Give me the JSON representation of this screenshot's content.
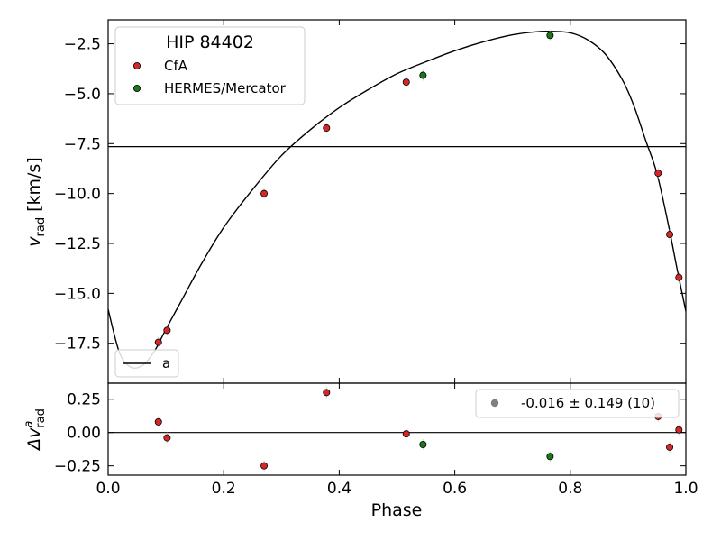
{
  "chart_data": {
    "type": "scatter",
    "title": "",
    "x_label": "Phase",
    "xlim": [
      0.0,
      1.0
    ],
    "x_ticks": [
      "0.0",
      "0.2",
      "0.4",
      "0.6",
      "0.8",
      "1.0"
    ],
    "panels": [
      {
        "name": "rv",
        "ylabel_base": "v",
        "ylabel_sub": "rad",
        "ylabel_unit": "[km/s]",
        "ylim": [
          -19.5,
          -1.3
        ],
        "y_ticks": [
          -2.5,
          -5.0,
          -7.5,
          -10.0,
          -12.5,
          -15.0,
          -17.5
        ],
        "y_tick_labels": [
          "−2.5",
          "−5.0",
          "−7.5",
          "−10.0",
          "−12.5",
          "−15.0",
          "−17.5"
        ],
        "systemic_velocity": -7.65,
        "orbit_model": {
          "name": "a",
          "phase": [
            0.0,
            0.02,
            0.04,
            0.06,
            0.08,
            0.1,
            0.13,
            0.16,
            0.2,
            0.25,
            0.3,
            0.35,
            0.4,
            0.45,
            0.5,
            0.55,
            0.6,
            0.65,
            0.7,
            0.74,
            0.77,
            0.8,
            0.83,
            0.86,
            0.89,
            0.91,
            0.93,
            0.95,
            0.97,
            0.985,
            1.0
          ],
          "vrad": [
            -15.8,
            -18.0,
            -18.7,
            -18.6,
            -17.9,
            -16.8,
            -15.2,
            -13.6,
            -11.7,
            -9.8,
            -8.1,
            -6.8,
            -5.7,
            -4.8,
            -4.0,
            -3.4,
            -2.85,
            -2.4,
            -2.05,
            -1.9,
            -1.88,
            -1.95,
            -2.3,
            -3.0,
            -4.3,
            -5.6,
            -7.3,
            -9.0,
            -11.6,
            -13.8,
            -15.9
          ]
        },
        "series": [
          {
            "name": "CfA",
            "color": "#d62728",
            "points": [
              [
                0.087,
                -17.45
              ],
              [
                0.102,
                -16.85
              ],
              [
                0.27,
                -10.0
              ],
              [
                0.378,
                -6.72
              ],
              [
                0.516,
                -4.42
              ],
              [
                0.952,
                -8.98
              ],
              [
                0.972,
                -12.05
              ],
              [
                0.988,
                -14.2
              ]
            ]
          },
          {
            "name": "HERMES/Mercator",
            "color": "#1a7a1a",
            "points": [
              [
                0.545,
                -4.08
              ],
              [
                0.765,
                -2.08
              ]
            ]
          }
        ]
      },
      {
        "name": "residuals",
        "ylabel_base": "Δv",
        "ylabel_sup": "a",
        "ylabel_sub": "rad",
        "ylim": [
          -0.32,
          0.37
        ],
        "y_ticks": [
          0.25,
          0.0,
          -0.25
        ],
        "y_tick_labels": [
          "0.25",
          "0.00",
          "−0.25"
        ],
        "zero_line": 0.0,
        "series": [
          {
            "name": "CfA",
            "color": "#d62728",
            "points": [
              [
                0.087,
                0.08
              ],
              [
                0.102,
                -0.04
              ],
              [
                0.27,
                -0.25
              ],
              [
                0.378,
                0.3
              ],
              [
                0.516,
                -0.01
              ],
              [
                0.952,
                0.12
              ],
              [
                0.972,
                -0.11
              ],
              [
                0.988,
                0.02
              ]
            ]
          },
          {
            "name": "HERMES/Mercator",
            "color": "#1a7a1a",
            "points": [
              [
                0.545,
                -0.09
              ],
              [
                0.765,
                -0.18
              ]
            ]
          }
        ],
        "stats_legend": {
          "label": "-0.016 ± 0.149 (10)",
          "color": "#808080"
        }
      }
    ],
    "legend": {
      "title": "HIP 84402",
      "placement": "top-left",
      "entries": [
        "CfA",
        "HERMES/Mercator"
      ]
    },
    "model_legend": {
      "label": "a",
      "placement": "bottom-left"
    }
  }
}
